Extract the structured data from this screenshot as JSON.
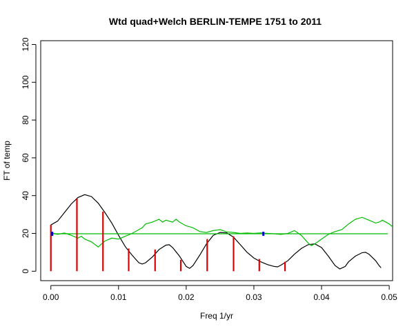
{
  "chart_data": {
    "type": "line",
    "title": "Wtd quad+Welch BERLIN-TEMPE 1751 to 2011",
    "xlabel": "Freq 1/yr",
    "ylabel": "FT of temp",
    "xlim": [
      -0.0015,
      0.0505
    ],
    "ylim": [
      -5,
      122
    ],
    "x_ticks": [
      "0.00",
      "0.01",
      "0.02",
      "0.03",
      "0.04",
      "0.05"
    ],
    "y_ticks": [
      "0",
      "20",
      "40",
      "60",
      "80",
      "100",
      "120"
    ],
    "grid": false,
    "legend": "none",
    "series": [
      {
        "color": "#000000",
        "points": [
          [
            0.0,
            24.5
          ],
          [
            0.001,
            26.5
          ],
          [
            0.002,
            31
          ],
          [
            0.003,
            35.5
          ],
          [
            0.004,
            39
          ],
          [
            0.005,
            40.5
          ],
          [
            0.006,
            39.5
          ],
          [
            0.007,
            36
          ],
          [
            0.008,
            31
          ],
          [
            0.009,
            25.5
          ],
          [
            0.01,
            19
          ],
          [
            0.011,
            13
          ],
          [
            0.012,
            8.5
          ],
          [
            0.013,
            4.5
          ],
          [
            0.0135,
            3.8
          ],
          [
            0.014,
            4.5
          ],
          [
            0.015,
            7.5
          ],
          [
            0.016,
            11.5
          ],
          [
            0.017,
            13.8
          ],
          [
            0.0175,
            14
          ],
          [
            0.018,
            12.5
          ],
          [
            0.019,
            8
          ],
          [
            0.02,
            2.5
          ],
          [
            0.0205,
            1.5
          ],
          [
            0.021,
            3
          ],
          [
            0.022,
            8.5
          ],
          [
            0.023,
            14.5
          ],
          [
            0.024,
            19
          ],
          [
            0.025,
            20.5
          ],
          [
            0.026,
            20.3
          ],
          [
            0.027,
            18
          ],
          [
            0.028,
            14
          ],
          [
            0.029,
            10
          ],
          [
            0.03,
            7
          ],
          [
            0.031,
            5
          ],
          [
            0.032,
            3.5
          ],
          [
            0.033,
            2.5
          ],
          [
            0.0335,
            2.3
          ],
          [
            0.034,
            3.2
          ],
          [
            0.035,
            5.5
          ],
          [
            0.036,
            9
          ],
          [
            0.037,
            12
          ],
          [
            0.038,
            14
          ],
          [
            0.039,
            14.5
          ],
          [
            0.04,
            12.5
          ],
          [
            0.041,
            8
          ],
          [
            0.042,
            3
          ],
          [
            0.0427,
            1.2
          ],
          [
            0.0435,
            2.5
          ],
          [
            0.044,
            5
          ],
          [
            0.045,
            8
          ],
          [
            0.046,
            9.8
          ],
          [
            0.0465,
            10
          ],
          [
            0.047,
            9
          ],
          [
            0.048,
            5.5
          ],
          [
            0.0485,
            3
          ],
          [
            0.0488,
            1.8
          ]
        ]
      },
      {
        "color": "#00bb00",
        "points": [
          [
            0.0,
            20
          ],
          [
            0.0005,
            20
          ],
          [
            0.001,
            19.5
          ],
          [
            0.002,
            20.2
          ],
          [
            0.003,
            19
          ],
          [
            0.004,
            17.5
          ],
          [
            0.0045,
            18.5
          ],
          [
            0.005,
            17
          ],
          [
            0.006,
            15.5
          ],
          [
            0.007,
            12.8
          ],
          [
            0.0075,
            14.5
          ],
          [
            0.008,
            16
          ],
          [
            0.009,
            17.5
          ],
          [
            0.01,
            17
          ],
          [
            0.011,
            18.5
          ],
          [
            0.012,
            20
          ],
          [
            0.013,
            22
          ],
          [
            0.0135,
            23
          ],
          [
            0.014,
            25
          ],
          [
            0.015,
            26
          ],
          [
            0.016,
            27.5
          ],
          [
            0.0165,
            26
          ],
          [
            0.017,
            27
          ],
          [
            0.018,
            26
          ],
          [
            0.0185,
            27.5
          ],
          [
            0.019,
            26
          ],
          [
            0.02,
            24
          ],
          [
            0.021,
            23
          ],
          [
            0.022,
            21
          ],
          [
            0.023,
            20.5
          ],
          [
            0.024,
            21.5
          ],
          [
            0.025,
            22
          ],
          [
            0.026,
            20.8
          ],
          [
            0.027,
            20.5
          ],
          [
            0.028,
            20
          ],
          [
            0.029,
            20.2
          ],
          [
            0.03,
            20
          ],
          [
            0.031,
            20.3
          ],
          [
            0.032,
            20
          ],
          [
            0.033,
            19.8
          ],
          [
            0.034,
            19.5
          ],
          [
            0.035,
            20
          ],
          [
            0.036,
            21.5
          ],
          [
            0.037,
            19
          ],
          [
            0.038,
            15
          ],
          [
            0.0385,
            13.5
          ],
          [
            0.039,
            14.5
          ],
          [
            0.04,
            17
          ],
          [
            0.041,
            19.5
          ],
          [
            0.042,
            21
          ],
          [
            0.043,
            22
          ],
          [
            0.044,
            25
          ],
          [
            0.045,
            27.5
          ],
          [
            0.046,
            28.5
          ],
          [
            0.047,
            27
          ],
          [
            0.048,
            25.5
          ],
          [
            0.0485,
            26
          ],
          [
            0.049,
            27
          ],
          [
            0.05,
            25
          ],
          [
            0.0505,
            23.5
          ]
        ]
      },
      {
        "color": "#00bb00",
        "points": [
          [
            0.0,
            19.8
          ],
          [
            0.0498,
            19.8
          ]
        ]
      }
    ],
    "spikes": {
      "color": "#dd0000",
      "points": [
        [
          0.0,
          24.5
        ],
        [
          0.00385,
          38.5
        ],
        [
          0.0077,
          31.5
        ],
        [
          0.0115,
          12
        ],
        [
          0.0154,
          11.5
        ],
        [
          0.0192,
          6
        ],
        [
          0.0231,
          17
        ],
        [
          0.027,
          18.5
        ],
        [
          0.0308,
          6.5
        ],
        [
          0.0346,
          5
        ]
      ]
    },
    "markers": {
      "color": "#0000cc",
      "points": [
        [
          0.0002,
          19.8
        ],
        [
          0.0314,
          19.8
        ]
      ]
    }
  }
}
